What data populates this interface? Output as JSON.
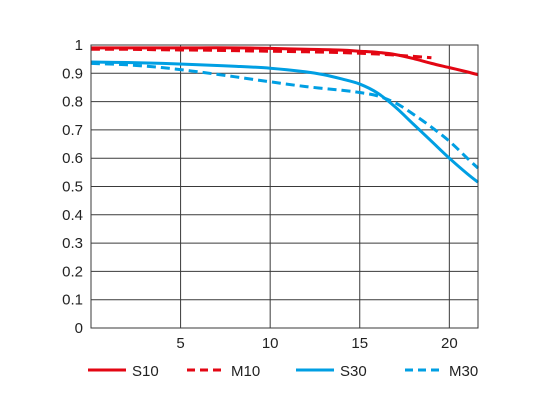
{
  "chart_data": {
    "type": "line",
    "title": "",
    "xlabel": "",
    "ylabel": "",
    "xlim": [
      0,
      21.6
    ],
    "ylim": [
      0,
      1
    ],
    "grid": true,
    "legend_position": "bottom",
    "x_ticks": [
      5,
      10,
      15,
      20
    ],
    "y_ticks": [
      0,
      0.1,
      0.2,
      0.3,
      0.4,
      0.5,
      0.6,
      0.7,
      0.8,
      0.9,
      1
    ],
    "x_tick_labels": [
      "5",
      "10",
      "15",
      "20"
    ],
    "y_tick_labels": [
      "0",
      "0.1",
      "0.2",
      "0.3",
      "0.4",
      "0.5",
      "0.6",
      "0.7",
      "0.8",
      "0.9",
      "1"
    ],
    "series": [
      {
        "name": "S10",
        "color": "#e30613",
        "dash": "solid",
        "x": [
          0,
          2,
          4,
          6,
          8,
          10,
          12,
          14,
          15,
          16,
          17,
          18,
          19,
          20,
          21,
          21.6
        ],
        "y": [
          0.99,
          0.99,
          0.99,
          0.99,
          0.99,
          0.988,
          0.985,
          0.982,
          0.978,
          0.974,
          0.966,
          0.952,
          0.935,
          0.92,
          0.905,
          0.895
        ]
      },
      {
        "name": "M10",
        "color": "#e30613",
        "dash": "dashed",
        "x": [
          0,
          2,
          4,
          6,
          8,
          10,
          12,
          14,
          16,
          18,
          19
        ],
        "y": [
          0.985,
          0.985,
          0.983,
          0.982,
          0.98,
          0.978,
          0.976,
          0.973,
          0.968,
          0.96,
          0.955
        ]
      },
      {
        "name": "S30",
        "color": "#009fe3",
        "dash": "solid",
        "x": [
          0,
          2,
          4,
          6,
          8,
          10,
          12,
          13,
          14,
          15,
          16,
          17,
          18,
          19,
          20,
          21,
          21.6
        ],
        "y": [
          0.94,
          0.938,
          0.935,
          0.93,
          0.925,
          0.918,
          0.905,
          0.895,
          0.88,
          0.862,
          0.83,
          0.78,
          0.72,
          0.66,
          0.6,
          0.545,
          0.515
        ]
      },
      {
        "name": "M30",
        "color": "#009fe3",
        "dash": "dashed",
        "x": [
          0,
          2,
          4,
          6,
          8,
          10,
          12,
          14,
          15,
          16,
          17,
          18,
          19,
          20,
          21,
          21.6
        ],
        "y": [
          0.935,
          0.93,
          0.92,
          0.905,
          0.888,
          0.87,
          0.853,
          0.84,
          0.832,
          0.82,
          0.795,
          0.755,
          0.71,
          0.66,
          0.6,
          0.565
        ]
      }
    ]
  }
}
